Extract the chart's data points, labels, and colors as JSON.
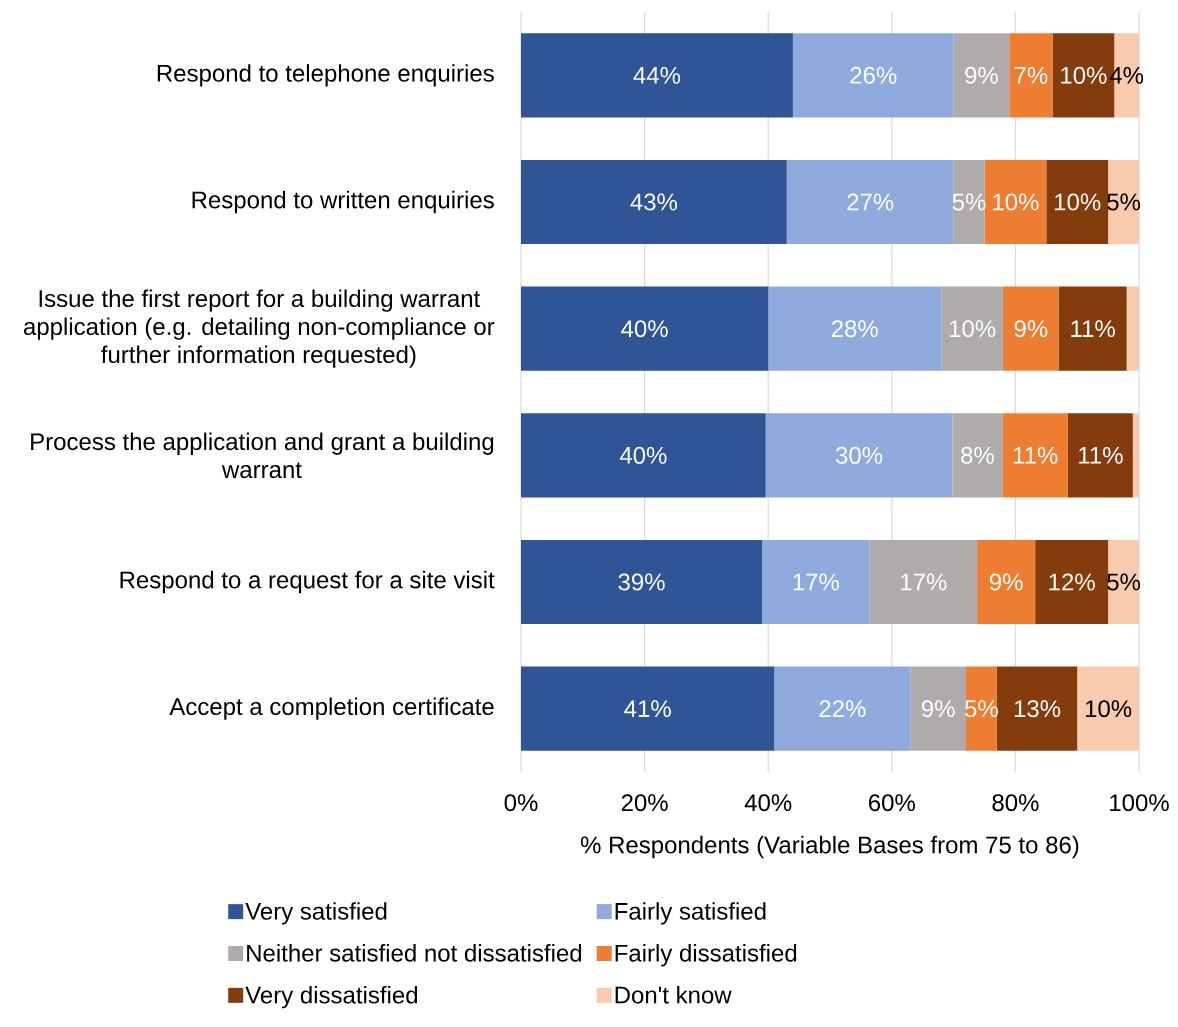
{
  "chart_data": {
    "type": "bar",
    "orientation": "horizontal",
    "stacked": true,
    "categories": [
      "Respond to telephone enquiries",
      "Respond to written enquiries",
      "Issue the first report for a building warrant application (e.g. detailing non-compliance or further information requested)",
      "Process the application and grant a building warrant",
      "Respond to a request for a site visit",
      "Accept a completion certificate"
    ],
    "series": [
      {
        "name": "Very satisfied",
        "color": "#2f5597",
        "values": [
          44,
          43,
          40,
          39.6,
          39,
          41
        ],
        "value_labels": [
          "44%",
          "43%",
          "40%",
          "40%",
          "39%",
          "41%"
        ]
      },
      {
        "name": "Fairly satisfied",
        "color": "#8faadc",
        "values": [
          26,
          27,
          28,
          30.2,
          17.4,
          22
        ],
        "value_labels": [
          "26%",
          "27%",
          "28%",
          "30%",
          "17%",
          "22%"
        ]
      },
      {
        "name": "Neither satisfied not dissatisfied",
        "color": "#afabab",
        "values": [
          9,
          5,
          10,
          8.1,
          17.4,
          9
        ],
        "value_labels": [
          "9%",
          "5%",
          "10%",
          "8%",
          "17%",
          "9%"
        ]
      },
      {
        "name": "Fairly dissatisfied",
        "color": "#ed7d31",
        "values": [
          7,
          10,
          9,
          10.6,
          9.4,
          5
        ],
        "value_labels": [
          "7%",
          "10%",
          "9%",
          "11%",
          "9%",
          "5%"
        ]
      },
      {
        "name": "Very dissatisfied",
        "color": "#843c0c",
        "values": [
          10,
          10,
          11,
          10.5,
          11.8,
          13
        ],
        "value_labels": [
          "10%",
          "10%",
          "11%",
          "11%",
          "12%",
          "13%"
        ]
      },
      {
        "name": "Don't know",
        "color": "#f8cbad",
        "values": [
          4,
          5,
          2,
          1.0,
          5,
          10
        ],
        "value_labels": [
          "4%",
          "5%",
          null,
          null,
          "5%",
          "10%"
        ]
      }
    ],
    "xlabel": "% Respondents (Variable Bases from 75 to 86)",
    "xlim": [
      0,
      100
    ],
    "xticks": [
      {
        "value": 0,
        "label": "0%"
      },
      {
        "value": 20,
        "label": "20%"
      },
      {
        "value": 40,
        "label": "40%"
      },
      {
        "value": 60,
        "label": "60%"
      },
      {
        "value": 80,
        "label": "80%"
      },
      {
        "value": 100,
        "label": "100%"
      }
    ],
    "grid": "x",
    "legend": "bottom"
  }
}
